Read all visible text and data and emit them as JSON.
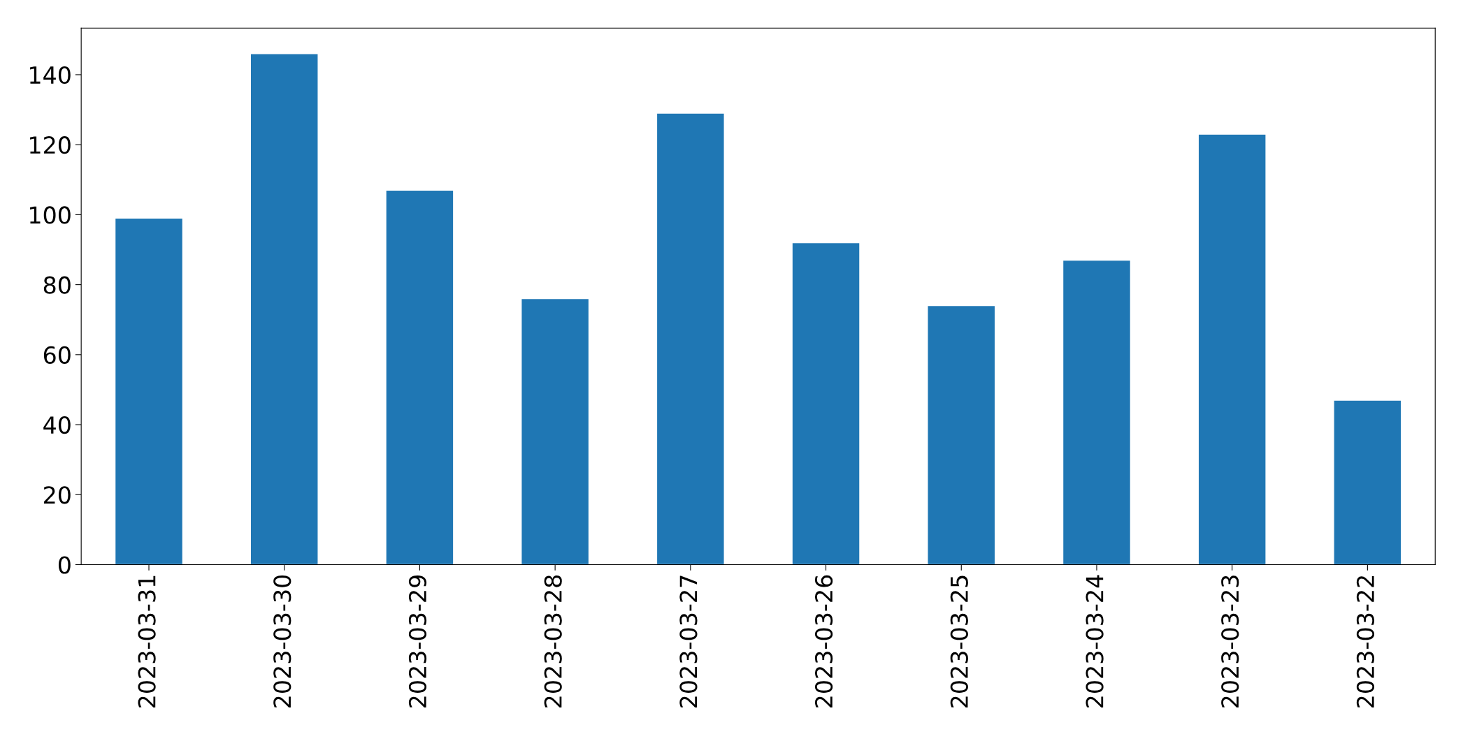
{
  "chart_data": {
    "type": "bar",
    "categories": [
      "2023-03-31",
      "2023-03-30",
      "2023-03-29",
      "2023-03-28",
      "2023-03-27",
      "2023-03-26",
      "2023-03-25",
      "2023-03-24",
      "2023-03-23",
      "2023-03-22"
    ],
    "values": [
      99,
      146,
      107,
      76,
      129,
      92,
      74,
      87,
      123,
      47
    ],
    "color": "#1f77b4",
    "ylim": [
      0,
      153.3
    ],
    "yticks": [
      0,
      20,
      40,
      60,
      80,
      100,
      120,
      140
    ],
    "grid": false,
    "legend": false
  }
}
